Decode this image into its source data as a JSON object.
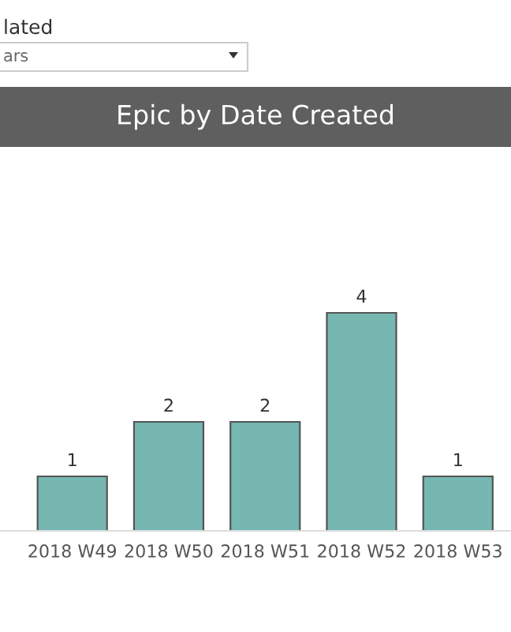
{
  "chart_data": {
    "type": "bar",
    "title": "Epic by Date Created",
    "annotations": [
      "lated",
      "ars"
    ],
    "categories": [
      "2018 W49",
      "2018 W50",
      "2018 W51",
      "2018 W52",
      "2018 W53"
    ],
    "values": [
      1,
      2,
      2,
      4,
      1
    ],
    "color": "#76b7b2",
    "data_labels": true,
    "tick_labels": "x"
  }
}
